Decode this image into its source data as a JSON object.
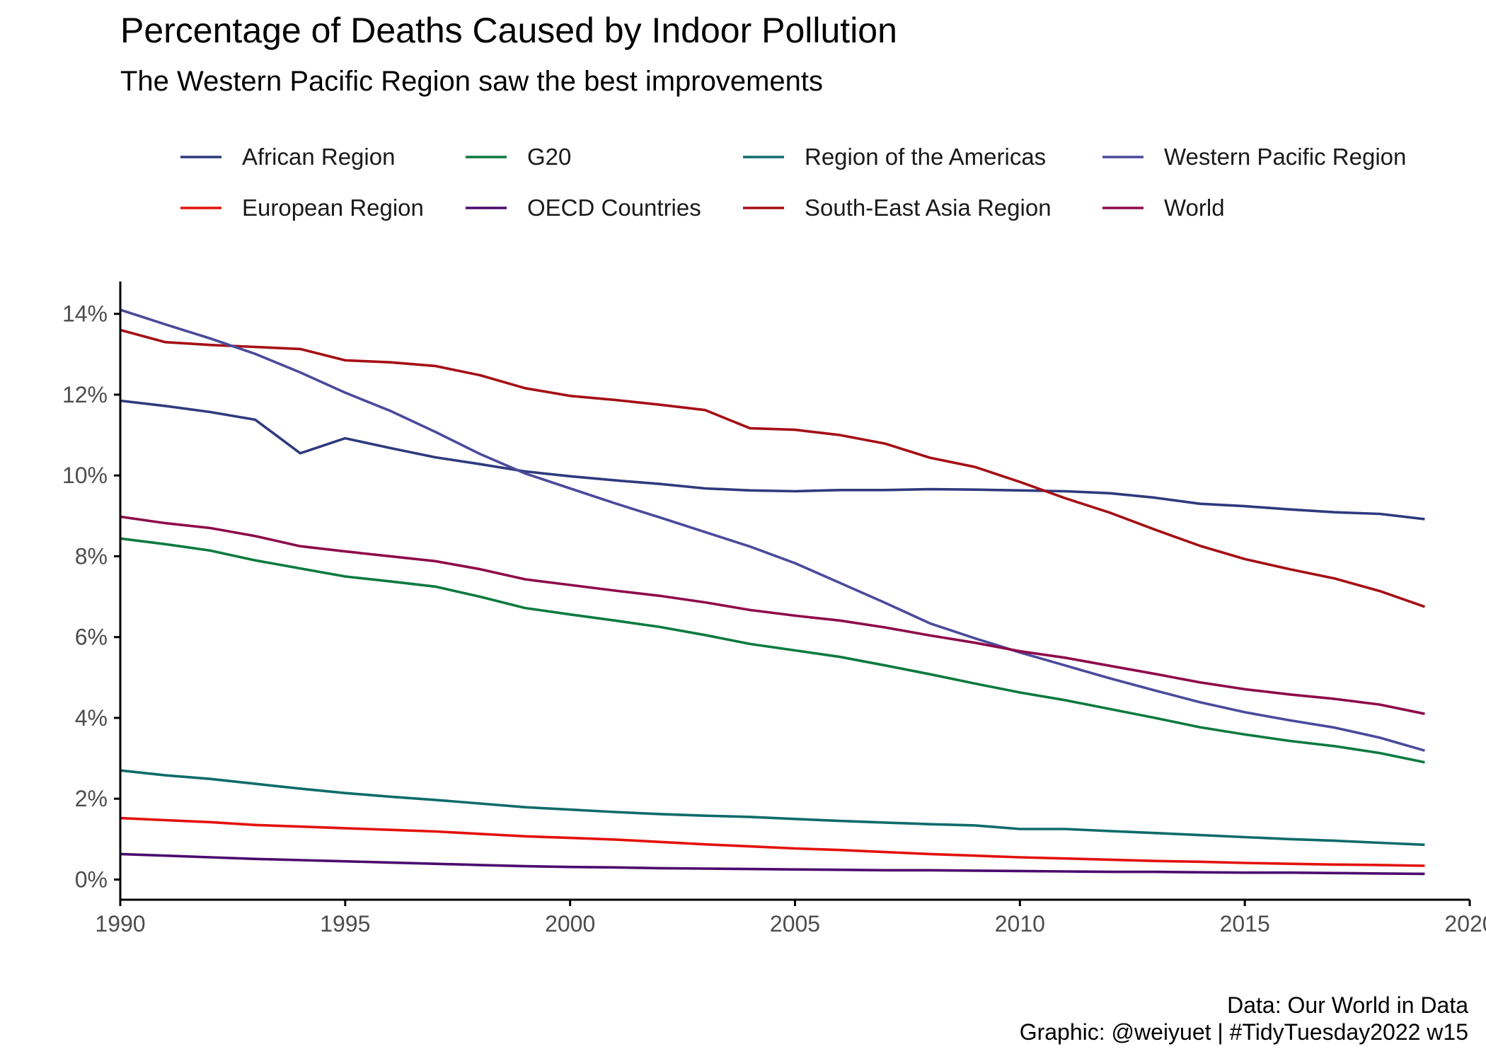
{
  "chart_data": {
    "type": "line",
    "title": "Percentage of Deaths Caused by Indoor Pollution",
    "subtitle": "The Western Pacific Region saw the best improvements",
    "xlabel": "",
    "ylabel": "",
    "xlim": [
      1990,
      2020
    ],
    "ylim": [
      -0.5,
      14.8
    ],
    "x_ticks": [
      1990,
      1995,
      2000,
      2005,
      2010,
      2015,
      2020
    ],
    "x_tick_labels": [
      "1990",
      "1995",
      "2000",
      "2005",
      "2010",
      "2015",
      "2020"
    ],
    "y_ticks": [
      0,
      2,
      4,
      6,
      8,
      10,
      12,
      14
    ],
    "y_tick_labels": [
      "0%",
      "2%",
      "4%",
      "6%",
      "8%",
      "10%",
      "12%",
      "14%"
    ],
    "grid": false,
    "legend_position": "top",
    "legend_columns": [
      [
        "African Region",
        "European Region"
      ],
      [
        "G20",
        "OECD Countries"
      ],
      [
        "Region of the Americas",
        "South-East Asia Region"
      ],
      [
        "Western Pacific Region",
        "World"
      ]
    ],
    "x": [
      1990,
      1991,
      1992,
      1993,
      1994,
      1995,
      1996,
      1997,
      1998,
      1999,
      2000,
      2001,
      2002,
      2003,
      2004,
      2005,
      2006,
      2007,
      2008,
      2009,
      2010,
      2011,
      2012,
      2013,
      2014,
      2015,
      2016,
      2017,
      2018,
      2019
    ],
    "series": [
      {
        "name": "African Region",
        "color": "#2e3a7d",
        "values": [
          11.85,
          11.72,
          11.57,
          11.38,
          10.55,
          10.92,
          10.68,
          10.45,
          10.28,
          10.1,
          9.98,
          9.88,
          9.79,
          9.68,
          9.63,
          9.61,
          9.64,
          9.64,
          9.66,
          9.65,
          9.63,
          9.61,
          9.56,
          9.45,
          9.3,
          9.24,
          9.16,
          9.09,
          9.05,
          8.92
        ]
      },
      {
        "name": "European Region",
        "color": "#e3120b",
        "values": [
          1.52,
          1.47,
          1.42,
          1.35,
          1.31,
          1.27,
          1.23,
          1.19,
          1.13,
          1.07,
          1.03,
          0.99,
          0.93,
          0.87,
          0.82,
          0.77,
          0.73,
          0.68,
          0.63,
          0.59,
          0.55,
          0.52,
          0.49,
          0.46,
          0.44,
          0.41,
          0.39,
          0.37,
          0.36,
          0.34
        ]
      },
      {
        "name": "G20",
        "color": "#0b7a3e",
        "values": [
          8.44,
          8.3,
          8.14,
          7.9,
          7.7,
          7.5,
          7.38,
          7.25,
          7.0,
          6.72,
          6.56,
          6.41,
          6.25,
          6.05,
          5.83,
          5.67,
          5.51,
          5.3,
          5.08,
          4.85,
          4.63,
          4.44,
          4.22,
          4.0,
          3.77,
          3.59,
          3.43,
          3.3,
          3.13,
          2.9
        ]
      },
      {
        "name": "OECD Countries",
        "color": "#4b0a6e",
        "values": [
          0.63,
          0.59,
          0.55,
          0.51,
          0.48,
          0.45,
          0.42,
          0.39,
          0.36,
          0.33,
          0.31,
          0.3,
          0.28,
          0.27,
          0.26,
          0.25,
          0.24,
          0.23,
          0.23,
          0.22,
          0.21,
          0.2,
          0.19,
          0.19,
          0.18,
          0.17,
          0.17,
          0.16,
          0.15,
          0.14
        ]
      },
      {
        "name": "Region of the Americas",
        "color": "#0e6b6b",
        "values": [
          2.7,
          2.58,
          2.49,
          2.37,
          2.25,
          2.14,
          2.05,
          1.97,
          1.88,
          1.79,
          1.73,
          1.67,
          1.62,
          1.58,
          1.55,
          1.5,
          1.45,
          1.41,
          1.37,
          1.34,
          1.25,
          1.25,
          1.2,
          1.15,
          1.1,
          1.05,
          1.0,
          0.96,
          0.91,
          0.86
        ]
      },
      {
        "name": "South-East Asia Region",
        "color": "#a50f15",
        "values": [
          13.6,
          13.3,
          13.23,
          13.18,
          13.13,
          12.85,
          12.8,
          12.71,
          12.48,
          12.16,
          11.97,
          11.87,
          11.75,
          11.62,
          11.17,
          11.13,
          11.0,
          10.79,
          10.44,
          10.21,
          9.84,
          9.44,
          9.08,
          8.66,
          8.26,
          7.93,
          7.68,
          7.45,
          7.14,
          6.75
        ]
      },
      {
        "name": "Western Pacific Region",
        "color": "#4a4a9c",
        "values": [
          14.1,
          13.74,
          13.39,
          13.01,
          12.55,
          12.05,
          11.6,
          11.08,
          10.53,
          10.05,
          9.68,
          9.31,
          8.96,
          8.6,
          8.24,
          7.83,
          7.34,
          6.85,
          6.34,
          5.97,
          5.62,
          5.3,
          4.98,
          4.68,
          4.39,
          4.14,
          3.94,
          3.76,
          3.51,
          3.19
        ]
      },
      {
        "name": "World",
        "color": "#8e0a4a",
        "values": [
          8.98,
          8.82,
          8.7,
          8.5,
          8.25,
          8.12,
          8.0,
          7.88,
          7.68,
          7.43,
          7.29,
          7.15,
          7.02,
          6.86,
          6.67,
          6.53,
          6.41,
          6.24,
          6.04,
          5.86,
          5.65,
          5.49,
          5.29,
          5.09,
          4.88,
          4.71,
          4.58,
          4.47,
          4.33,
          4.1
        ]
      }
    ],
    "caption": [
      "Data: Our World in Data",
      "Graphic: @weiyuet | #TidyTuesday2022 w15"
    ]
  }
}
